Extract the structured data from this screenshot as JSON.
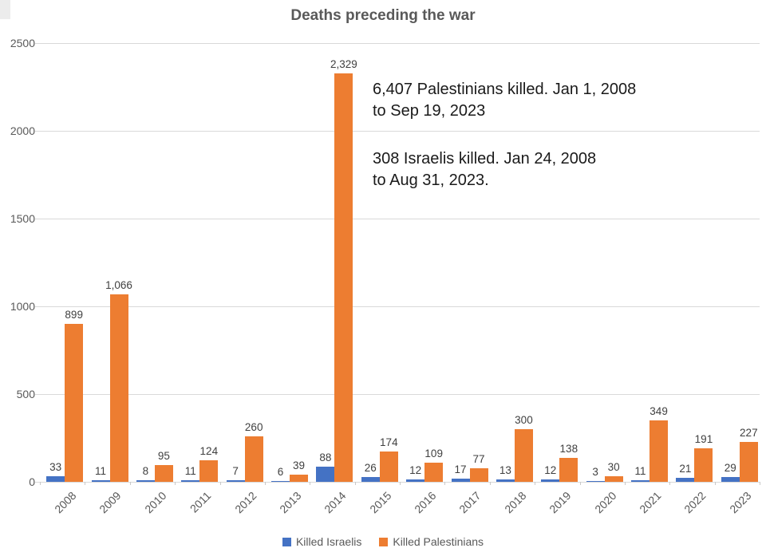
{
  "title": "Deaths preceding the war",
  "annotations": [
    {
      "text": "6,407 Palestinians killed. Jan 1, 2008\nto Sep 19, 2023"
    },
    {
      "text": "308 Israelis killed. Jan 24, 2008\nto Aug 31, 2023."
    }
  ],
  "legend": {
    "items": [
      {
        "label": "Killed Israelis",
        "color": "#4472C4"
      },
      {
        "label": "Killed Palestinians",
        "color": "#ED7D31"
      }
    ]
  },
  "colors": {
    "israelis": "#4472C4",
    "palestinians": "#ED7D31",
    "grid": "#D9D9D9",
    "title_text": "#595959",
    "axis_text": "#595959",
    "data_label_text": "#404040"
  },
  "chart_data": {
    "type": "bar",
    "title": "Deaths preceding the war",
    "categories": [
      "2008",
      "2009",
      "2010",
      "2011",
      "2012",
      "2013",
      "2014",
      "2015",
      "2016",
      "2017",
      "2018",
      "2019",
      "2020",
      "2021",
      "2022",
      "2023"
    ],
    "series": [
      {
        "name": "Killed Israelis",
        "color": "#4472C4",
        "values": [
          33,
          11,
          8,
          11,
          7,
          6,
          88,
          26,
          12,
          17,
          13,
          12,
          3,
          11,
          21,
          29
        ]
      },
      {
        "name": "Killed Palestinians",
        "color": "#ED7D31",
        "values": [
          899,
          1066,
          95,
          124,
          260,
          39,
          2329,
          174,
          109,
          77,
          300,
          138,
          30,
          349,
          191,
          227
        ]
      }
    ],
    "xlabel": "",
    "ylabel": "",
    "ylim": [
      0,
      2500
    ],
    "ytick_step": 500,
    "grid": true,
    "data_labels": true,
    "legend_position": "bottom"
  }
}
